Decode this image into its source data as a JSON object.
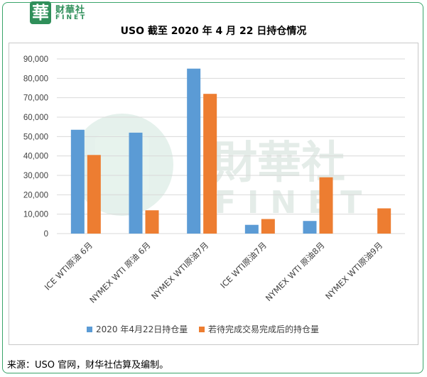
{
  "logo": {
    "seal_char": "華",
    "name": "财華社",
    "latin": "FINET"
  },
  "watermark": {
    "text_cn": "財華社",
    "text_en": "FINET"
  },
  "source_note": "来源：USO 官网，财华社估算及编制。",
  "colors": {
    "series1": "#5b9bd5",
    "series2": "#ed7d31",
    "frame": "#3aa46a",
    "grid": "#d9d9d9",
    "axis_text": "#404040"
  },
  "chart_data": {
    "type": "bar",
    "title": "USO 截至 2020 年 4 月 22 日持仓情况",
    "categories": [
      "ICE WTI原油 6月",
      "NYMEX WTI 原油 6月",
      "NYMEX WTI原油7月",
      "ICE WTI原油7月",
      "NYMEX WTI 原油8月",
      "NYMEX WTI原油9月"
    ],
    "series": [
      {
        "name": "2020 年4月22日持仓量",
        "values": [
          53500,
          52000,
          85000,
          4500,
          6500,
          0
        ]
      },
      {
        "name": "若待完成交易完成后的持仓量",
        "values": [
          40500,
          12000,
          72000,
          7500,
          29000,
          13000
        ]
      }
    ],
    "ylim": [
      0,
      90000
    ],
    "yticks": [
      "0",
      "10,000",
      "20,000",
      "30,000",
      "40,000",
      "50,000",
      "60,000",
      "70,000",
      "80,000",
      "90,000"
    ],
    "xlabel": "",
    "ylabel": "",
    "grid": true,
    "legend_position": "bottom"
  }
}
